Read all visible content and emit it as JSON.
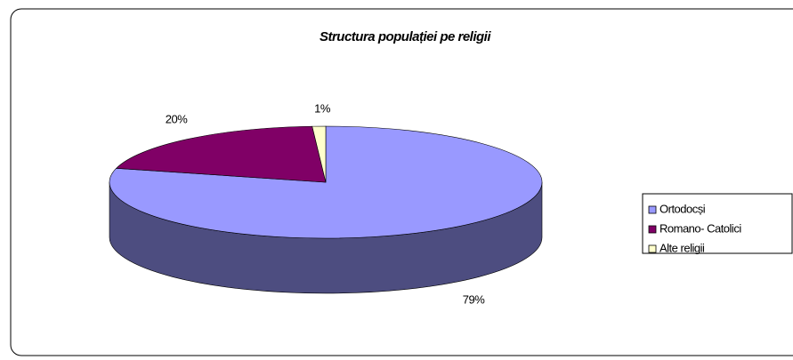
{
  "chart_data": {
    "type": "pie3d",
    "title": "Structura populației pe religii",
    "categories": [
      "Ortodocși",
      "Romano- Catolici",
      "Alte religii"
    ],
    "values": [
      79,
      20,
      1
    ],
    "value_labels": [
      "79%",
      "20%",
      "1%"
    ],
    "colors": [
      "#9999ff",
      "#800066",
      "#ffffcc"
    ],
    "legend": "right"
  }
}
